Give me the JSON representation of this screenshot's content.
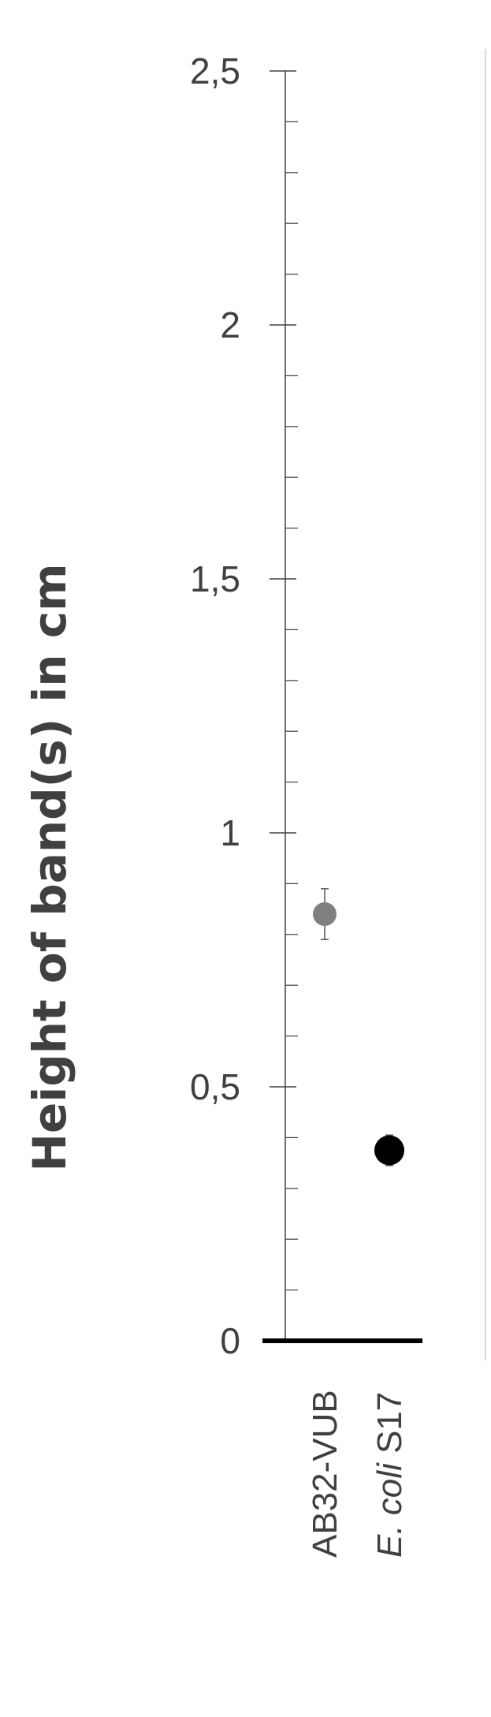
{
  "chart_data": {
    "type": "scatter",
    "title": "",
    "xlabel": "",
    "ylabel": "Height of band(s) in cm",
    "ylim": [
      0,
      2.5
    ],
    "y_ticks": [
      "0",
      "0,5",
      "1",
      "1,5",
      "2",
      "2,5"
    ],
    "y_tick_values": [
      0,
      0.5,
      1,
      1.5,
      2,
      2.5
    ],
    "y_minor_step": 0.1,
    "grid": false,
    "categories": [
      {
        "plain": "AB32-VUB",
        "italic": "",
        "suffix": ""
      },
      {
        "plain": "",
        "italic": "E. coli",
        "suffix": " S17"
      }
    ],
    "points": [
      {
        "category": 0,
        "y": 0.84,
        "error": 0.05,
        "color": "#808080"
      },
      {
        "category": 1,
        "y": 0.375,
        "error": 0.03,
        "color": "#000000"
      }
    ]
  }
}
